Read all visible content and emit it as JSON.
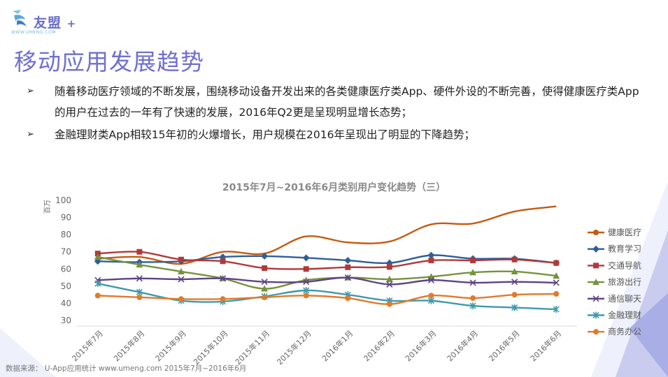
{
  "logo": {
    "name": "友盟",
    "plus": "+",
    "url": "WWW.UMENG.COM"
  },
  "page_title": "移动应用发展趋势",
  "bullets": [
    {
      "marker": "➢",
      "text": "随着移动医疗领域的不断发展，围绕移动设备开发出来的各类健康医疗类App、硬件外设的不断完善，使得健康医疗类App的用户在过去的一年有了快速的发展，2016年Q2更是呈现明显增长态势；"
    },
    {
      "marker": "➢",
      "text": "金融理财类App相较15年初的火爆增长，用户规模在2016年呈现出了明显的下降趋势；"
    }
  ],
  "footer": "数据来源： U-App应用统计 www.umeng.com 2015年7月~2016年6月",
  "chart_data": {
    "type": "line",
    "title": "2015年7月~2016年6月类别用户变化趋势（三）",
    "ylabel": "百万",
    "ylim": [
      30,
      100
    ],
    "yticks": [
      30,
      40,
      50,
      60,
      70,
      80,
      90,
      100
    ],
    "grid": false,
    "legend_position": "right",
    "categories": [
      "2015年7月",
      "2015年8月",
      "2015年9月",
      "2015年10月",
      "2015年11月",
      "2015年12月",
      "2016年1月",
      "2016年2月",
      "2016年3月",
      "2016年4月",
      "2016年5月",
      "2016年6月"
    ],
    "series": [
      {
        "name": "健康医疗",
        "color": "#c55a11",
        "marker": "none",
        "values": [
          66,
          67,
          63,
          70,
          69,
          79,
          75.5,
          76,
          86,
          86.5,
          93.5,
          96.5
        ]
      },
      {
        "name": "教育学习",
        "color": "#2e5f9a",
        "marker": "diamond",
        "values": [
          64.5,
          64,
          64.5,
          67,
          67.5,
          66.5,
          65,
          63.5,
          68,
          66,
          66,
          63.5
        ]
      },
      {
        "name": "交通导航",
        "color": "#b03a3a",
        "marker": "square",
        "values": [
          69,
          70,
          65.5,
          64.5,
          60.5,
          60,
          61,
          61.2,
          65,
          65,
          65.5,
          63.5
        ]
      },
      {
        "name": "旅游出行",
        "color": "#76923c",
        "marker": "triangle",
        "values": [
          67,
          62.5,
          58.5,
          54.5,
          48.5,
          53.5,
          55,
          54,
          55.5,
          58,
          58.5,
          56
        ]
      },
      {
        "name": "通信聊天",
        "color": "#5e4285",
        "marker": "x",
        "values": [
          53.5,
          54.5,
          54,
          54.5,
          52.5,
          52.5,
          55,
          51,
          53.5,
          52,
          52.5,
          52
        ]
      },
      {
        "name": "金融理财",
        "color": "#3f9aaa",
        "marker": "star",
        "values": [
          51.5,
          46.5,
          41.5,
          41,
          44,
          47.5,
          45,
          41.5,
          41.5,
          38.5,
          37.5,
          36.5
        ]
      },
      {
        "name": "商务办公",
        "color": "#e07b2c",
        "marker": "circle",
        "values": [
          44.5,
          43.5,
          42.5,
          42.5,
          43.5,
          44.5,
          43,
          39.5,
          44.5,
          43,
          45,
          45.5
        ]
      }
    ]
  }
}
